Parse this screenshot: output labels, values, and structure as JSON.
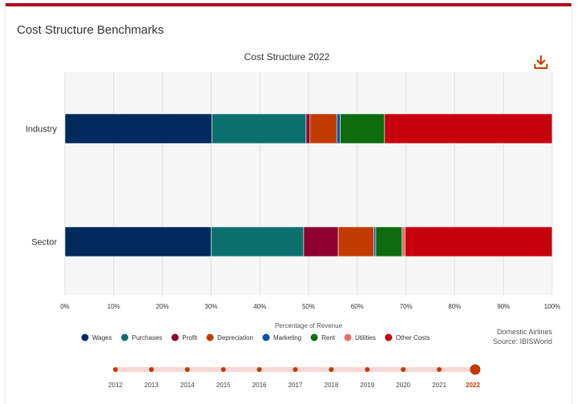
{
  "card": {
    "title": "Cost Structure Benchmarks"
  },
  "chart_data": {
    "type": "bar",
    "orientation": "horizontal",
    "stacked": true,
    "title": "Cost Structure 2022",
    "xlabel": "Percentage of Revenue",
    "ylabel": "",
    "xlim": [
      0,
      100
    ],
    "x_ticks": [
      "0%",
      "10%",
      "20%",
      "30%",
      "40%",
      "50%",
      "60%",
      "70%",
      "80%",
      "90%",
      "100%"
    ],
    "categories": [
      "Industry",
      "Sector"
    ],
    "grid": true,
    "legend_position": "bottom",
    "series": [
      {
        "name": "Wages",
        "color": "#002b5c",
        "values": [
          30.2,
          30.0
        ]
      },
      {
        "name": "Purchases",
        "color": "#0c706f",
        "values": [
          19.3,
          19.0
        ]
      },
      {
        "name": "Profit",
        "color": "#8f0030",
        "values": [
          0.8,
          7.1
        ]
      },
      {
        "name": "Depreciation",
        "color": "#c13b00",
        "values": [
          5.5,
          7.3
        ]
      },
      {
        "name": "Marketing",
        "color": "#0054a6",
        "values": [
          0.7,
          0.4
        ]
      },
      {
        "name": "Rent",
        "color": "#0e6b0e",
        "values": [
          9.1,
          5.4
        ]
      },
      {
        "name": "Utilities",
        "color": "#e07070",
        "values": [
          0.0,
          0.6
        ]
      },
      {
        "name": "Other Costs",
        "color": "#c7000e",
        "values": [
          34.4,
          30.2
        ]
      }
    ]
  },
  "source": {
    "line1": "Domestic Airlines",
    "line2": "Source: IBISWorld"
  },
  "timeline": {
    "years": [
      "2012",
      "2013",
      "2014",
      "2015",
      "2016",
      "2017",
      "2018",
      "2019",
      "2020",
      "2021",
      "2022"
    ],
    "selected": "2022",
    "accent": "#c13b00"
  },
  "icons": {
    "download": "download-icon"
  },
  "colors": {
    "brand": "#b5001c",
    "accent": "#c13b00"
  }
}
